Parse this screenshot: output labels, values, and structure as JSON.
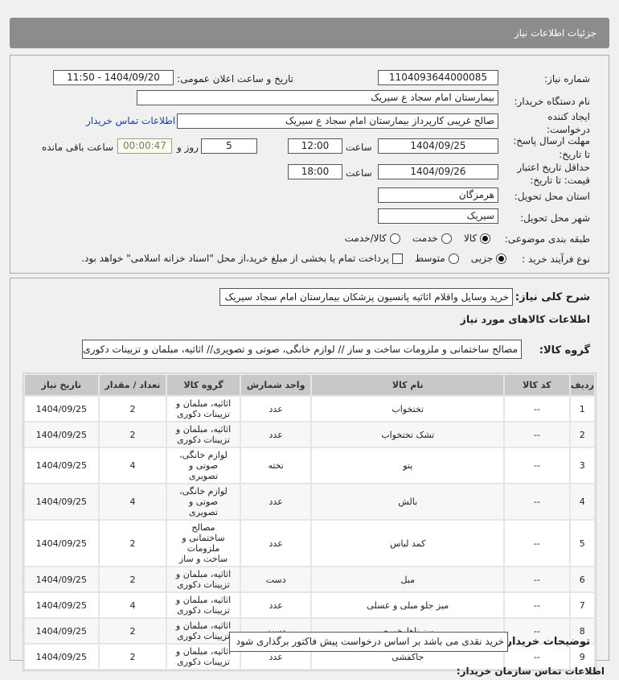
{
  "header": {
    "title": "جزئیات اطلاعات نیاز"
  },
  "form": {
    "need_number_label": "شماره نیاز:",
    "need_number": "1104093644000085",
    "announce_label": "تاریخ و ساعت اعلان عمومی:",
    "announce_value": "1404/09/20 - 11:50",
    "buyer_label": "نام دستگاه خریدار:",
    "buyer_value": "بیمارستان امام سجاد  ع  سیریک",
    "creator_label1": "ایجاد کننده",
    "creator_label2": "درخواست:",
    "creator_value": "صالح غریبی کارپرداز بیمارستان امام سجاد  ع  سیریک",
    "contact_link": "اطلاعات تماس خریدار",
    "deadline_label1": "مهلت ارسال پاسخ:",
    "deadline_label2": "تا تاریخ:",
    "deadline_date": "1404/09/25",
    "time_label": "ساعت",
    "deadline_time": "12:00",
    "days": "5",
    "days_label": "روز و",
    "remaining": "00:00:47",
    "remaining_label": "ساعت باقی مانده",
    "validity_label1": "حداقل تاریخ اعتبار",
    "validity_label2": "قیمت: تا تاریخ:",
    "validity_date": "1404/09/26",
    "validity_time": "18:00",
    "province_label": "استان محل تحویل:",
    "province": "هرمزگان",
    "city_label": "شهر محل تحویل:",
    "city": "سیریک",
    "category_label": "طبقه بندی موضوعی:",
    "category_options": [
      "کالا",
      "خدمت",
      "کالا/خدمت"
    ],
    "category_selected": "کالا",
    "process_label": "نوع فرآیند خرید :",
    "process_options": [
      "جزیی",
      "متوسط"
    ],
    "process_selected": "جزیی",
    "payment_note": "پرداخت تمام یا بخشی از مبلغ خرید،از محل \"اسناد خزانه اسلامی\" خواهد بود.",
    "payment_checked": false
  },
  "details": {
    "summary_label": "شرح کلی نیاز:",
    "summary": "خرید وسایل واقلام اثاثیه پانسیون پزشکان بیمارستان امام سجاد سیریک",
    "goods_info_title": "اطلاعات کالاهای مورد نیاز",
    "group_label": "گروه کالا:",
    "group_value": "مصالح ساختمانی و ملزومات ساخت و ساز // لوازم خانگی، صوتی و تصویری// اثاثیه، مبلمان و تزیینات دکوری",
    "columns": [
      "ردیف",
      "کد کالا",
      "نام کالا",
      "واحد شمارش",
      "گروه کالا",
      "تعداد / مقدار",
      "تاریخ نیاز"
    ],
    "rows": [
      [
        "1",
        "--",
        "تختخواب",
        "عدد",
        "اثاثیه، مبلمان و تزیینات دکوری",
        "2",
        "1404/09/25"
      ],
      [
        "2",
        "--",
        "تشک تختخواب",
        "عدد",
        "اثاثیه، مبلمان و تزیینات دکوری",
        "2",
        "1404/09/25"
      ],
      [
        "3",
        "--",
        "پتو",
        "تخته",
        "لوازم خانگی، صوتی و تصویری",
        "4",
        "1404/09/25"
      ],
      [
        "4",
        "--",
        "بالش",
        "عدد",
        "لوازم خانگی، صوتی و تصویری",
        "4",
        "1404/09/25"
      ],
      [
        "5",
        "--",
        "کمد لباس",
        "عدد",
        "مصالح ساختمانی و ملزومات ساخت و ساز",
        "2",
        "1404/09/25"
      ],
      [
        "6",
        "--",
        "مبل",
        "دست",
        "اثاثیه، مبلمان و تزیینات دکوری",
        "2",
        "1404/09/25"
      ],
      [
        "7",
        "--",
        "میز جلو مبلی و عسلی",
        "عدد",
        "اثاثیه، مبلمان و تزیینات دکوری",
        "4",
        "1404/09/25"
      ],
      [
        "8",
        "--",
        "میز ناهارخوری",
        "دست",
        "اثاثیه، مبلمان و تزیینات دکوری",
        "2",
        "1404/09/25"
      ],
      [
        "9",
        "--",
        "جاکفشی",
        "عدد",
        "اثاثیه، مبلمان و تزیینات دکوری",
        "2",
        "1404/09/25"
      ]
    ],
    "remarks_label": "توضیحات خریدار:",
    "remarks": "خرید نقدی می باشد بر اساس درخواست پیش فاکتور برگذاری شود"
  },
  "footer": {
    "contact_title": "اطلاعات تماس سازمان خریدار:"
  },
  "colors": {
    "header_bg": "#8c8c8c",
    "link": "#1a3fa8"
  }
}
